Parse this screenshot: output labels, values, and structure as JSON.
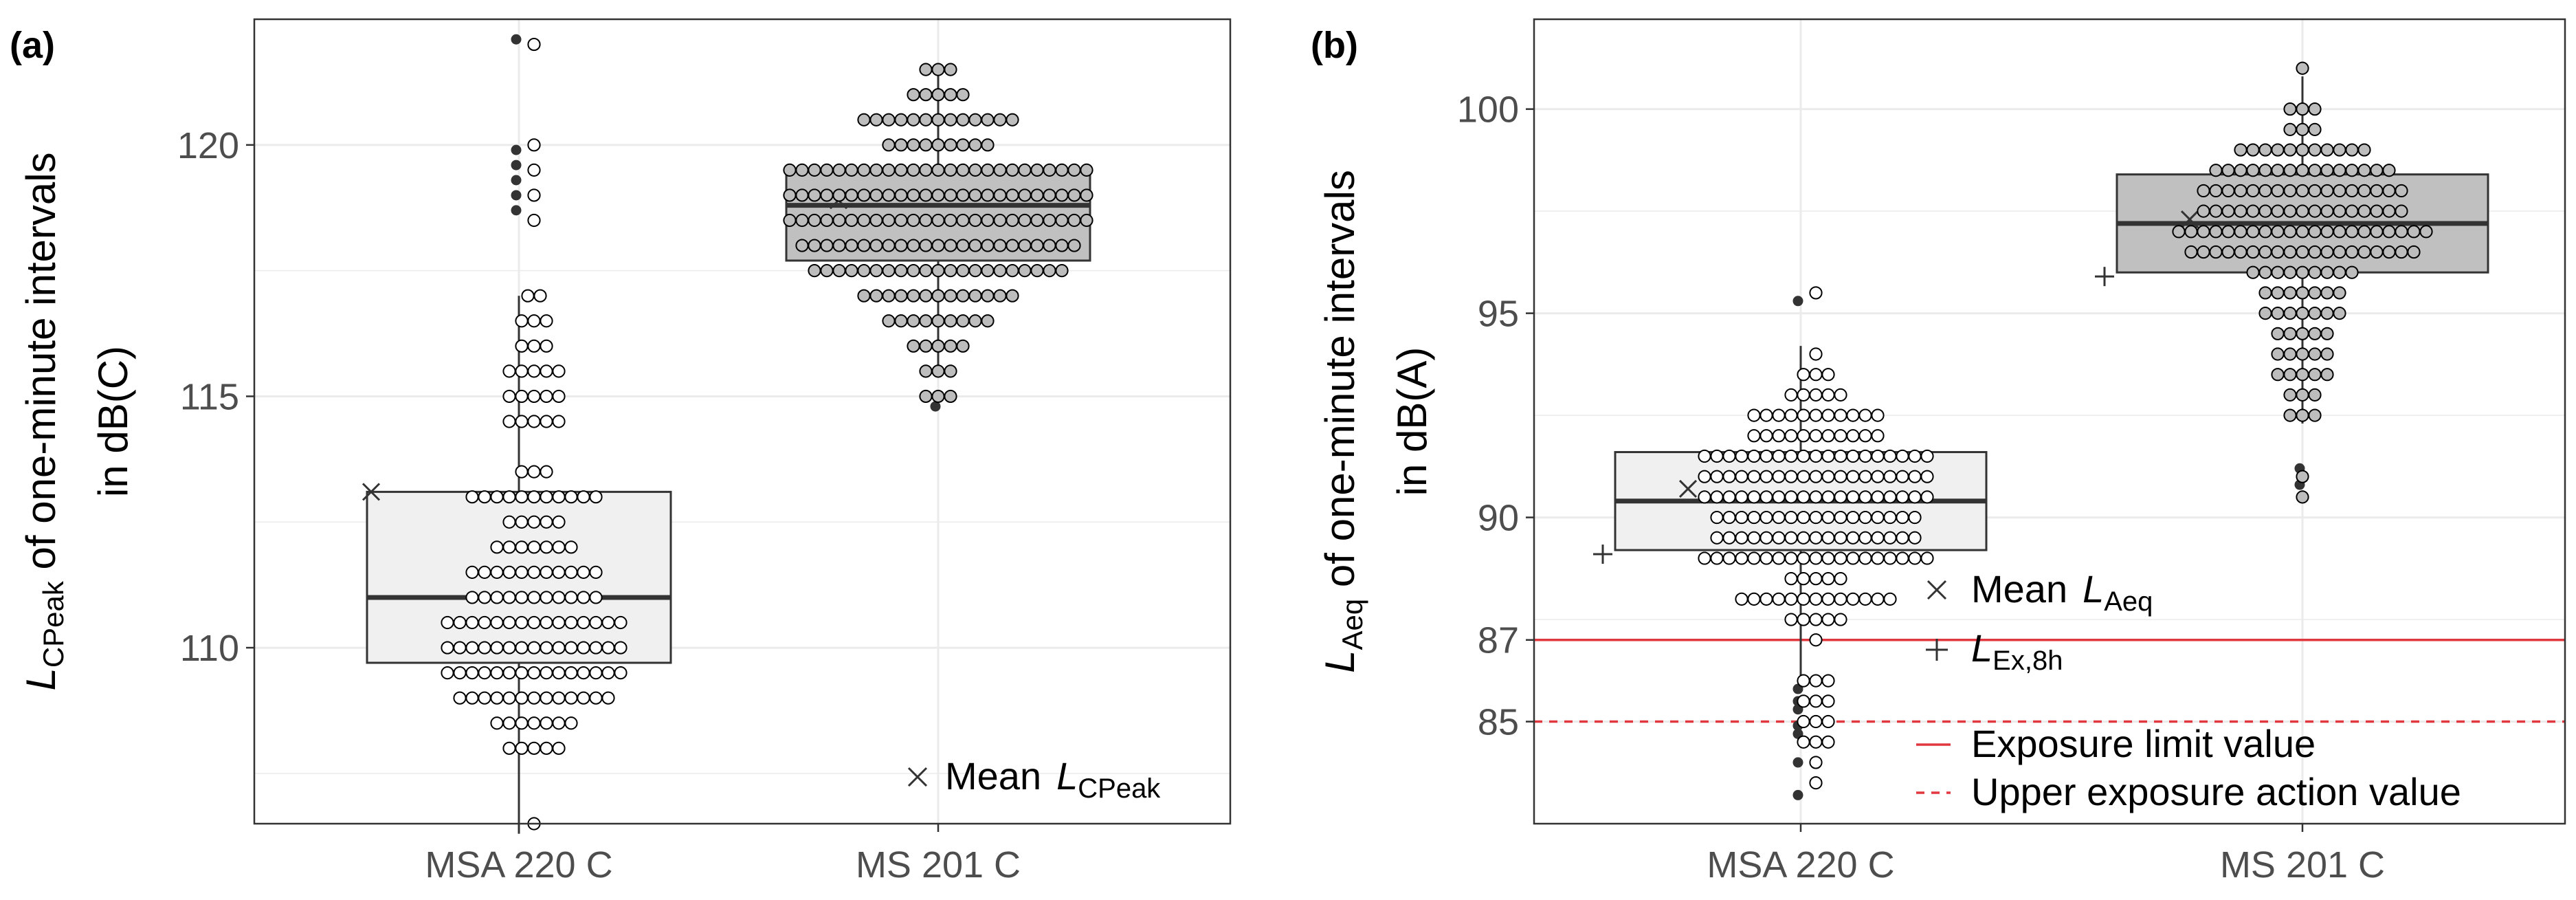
{
  "colors": {
    "grid": "#ebebeb",
    "panel_border": "#333333",
    "box_msa_fill": "#f0f0f0",
    "box_ms_fill": "#c0c0c0",
    "median": "#333333",
    "dot_outline": "#000000",
    "dot_msa_fill": "#ffffff",
    "dot_ms_fill": "#bdbdbd",
    "outlier": "#333333",
    "limit_red": "#e0383e"
  },
  "chart_data": [
    {
      "panel": "(a)",
      "type": "box",
      "categories": [
        "MSA 220 C",
        "MS 201 C"
      ],
      "ylabel_main": "L",
      "ylabel_sub": "CPeak",
      "ylabel_rest": " of one-minute intervals",
      "ylabel_line2": "in dB(C)",
      "ylim": [
        106.5,
        122.5
      ],
      "yticks": [
        110,
        115,
        120
      ],
      "grid": true,
      "legend": {
        "position": "bottom-right",
        "mean_symbol": "×",
        "mean_text": "Mean",
        "mean_var": "L",
        "mean_sub": "CPeak"
      },
      "boxes": [
        {
          "q1": 109.7,
          "median": 111.0,
          "q3": 113.1,
          "whisker_low": 106.3,
          "whisker_high": 117.0,
          "mean": 113.1,
          "outliers": [
            122.1,
            119.9,
            119.6,
            119.3,
            119.0,
            118.7
          ]
        },
        {
          "q1": 117.7,
          "median": 118.8,
          "q3": 119.5,
          "whisker_low": 115.4,
          "whisker_high": 121.5,
          "mean": 118.9,
          "outliers": [
            114.8
          ]
        }
      ],
      "dotplots": [
        {
          "bins": [
            [
              122,
              1
            ],
            [
              120,
              1
            ],
            [
              119.5,
              1
            ],
            [
              119,
              1
            ],
            [
              118.5,
              1
            ],
            [
              117,
              2
            ],
            [
              116.5,
              3
            ],
            [
              116,
              3
            ],
            [
              115.5,
              5
            ],
            [
              115,
              5
            ],
            [
              114.5,
              5
            ],
            [
              113.5,
              3
            ],
            [
              113,
              11
            ],
            [
              112.5,
              5
            ],
            [
              112,
              7
            ],
            [
              111.5,
              11
            ],
            [
              111,
              11
            ],
            [
              110.5,
              15
            ],
            [
              110,
              15
            ],
            [
              109.5,
              15
            ],
            [
              109,
              13
            ],
            [
              108.5,
              7
            ],
            [
              108,
              5
            ],
            [
              106.5,
              1
            ]
          ]
        },
        {
          "bins": [
            [
              121.5,
              3
            ],
            [
              121,
              5
            ],
            [
              120.5,
              13
            ],
            [
              120,
              9
            ],
            [
              119.5,
              25
            ],
            [
              119,
              25
            ],
            [
              118.5,
              25
            ],
            [
              118,
              23
            ],
            [
              117.5,
              21
            ],
            [
              117,
              13
            ],
            [
              116.5,
              9
            ],
            [
              116,
              5
            ],
            [
              115.5,
              3
            ],
            [
              115,
              3
            ]
          ]
        }
      ]
    },
    {
      "panel": "(b)",
      "type": "box",
      "categories": [
        "MSA 220 C",
        "MS 201 C"
      ],
      "ylabel_main": "L",
      "ylabel_sub": "Aeq",
      "ylabel_rest": " of one-minute intervals",
      "ylabel_line2": "in dB(A)",
      "ylim": [
        82.5,
        102.2
      ],
      "yticks": [
        85,
        87,
        90,
        95,
        100
      ],
      "grid": true,
      "reference_lines": [
        {
          "y": 87,
          "style": "solid",
          "label": "Exposure limit value"
        },
        {
          "y": 85,
          "style": "dashed",
          "label": "Upper exposure action value"
        }
      ],
      "legend": {
        "position": "bottom-right",
        "mean_symbol": "×",
        "mean_text": "Mean",
        "mean_var": "L",
        "mean_sub": "Aeq",
        "lex_symbol": "+",
        "lex_var": "L",
        "lex_sub": "Ex,8h"
      },
      "boxes": [
        {
          "q1": 89.2,
          "median": 90.4,
          "q3": 91.6,
          "whisker_low": 86.0,
          "whisker_high": 94.2,
          "mean": 90.7,
          "lex": 89.1,
          "outliers": [
            95.3,
            85.8,
            85.5,
            85.3,
            84.9,
            84.7,
            84.0,
            83.2
          ]
        },
        {
          "q1": 96.0,
          "median": 97.2,
          "q3": 98.4,
          "whisker_low": 92.3,
          "whisker_high": 100.8,
          "mean": 97.3,
          "lex": 95.9,
          "outliers": [
            91.2,
            90.8
          ]
        }
      ],
      "dotplots": [
        {
          "bins": [
            [
              95.5,
              1
            ],
            [
              94,
              1
            ],
            [
              93.5,
              3
            ],
            [
              93,
              5
            ],
            [
              92.5,
              11
            ],
            [
              92,
              11
            ],
            [
              91.5,
              19
            ],
            [
              91,
              19
            ],
            [
              90.5,
              19
            ],
            [
              90,
              17
            ],
            [
              89.5,
              17
            ],
            [
              89,
              19
            ],
            [
              88.5,
              5
            ],
            [
              88,
              13
            ],
            [
              87.5,
              5
            ],
            [
              87,
              1
            ],
            [
              86,
              3
            ],
            [
              85.5,
              3
            ],
            [
              85,
              3
            ],
            [
              84.5,
              3
            ],
            [
              84,
              1
            ],
            [
              83.5,
              1
            ]
          ]
        },
        {
          "bins": [
            [
              101,
              1
            ],
            [
              100,
              3
            ],
            [
              99.5,
              3
            ],
            [
              99,
              11
            ],
            [
              98.5,
              15
            ],
            [
              98,
              17
            ],
            [
              97.5,
              17
            ],
            [
              97,
              21
            ],
            [
              96.5,
              19
            ],
            [
              96,
              9
            ],
            [
              95.5,
              7
            ],
            [
              95,
              7
            ],
            [
              94.5,
              5
            ],
            [
              94,
              5
            ],
            [
              93.5,
              5
            ],
            [
              93,
              3
            ],
            [
              92.5,
              3
            ],
            [
              91,
              1
            ],
            [
              90.5,
              1
            ]
          ]
        }
      ]
    }
  ]
}
